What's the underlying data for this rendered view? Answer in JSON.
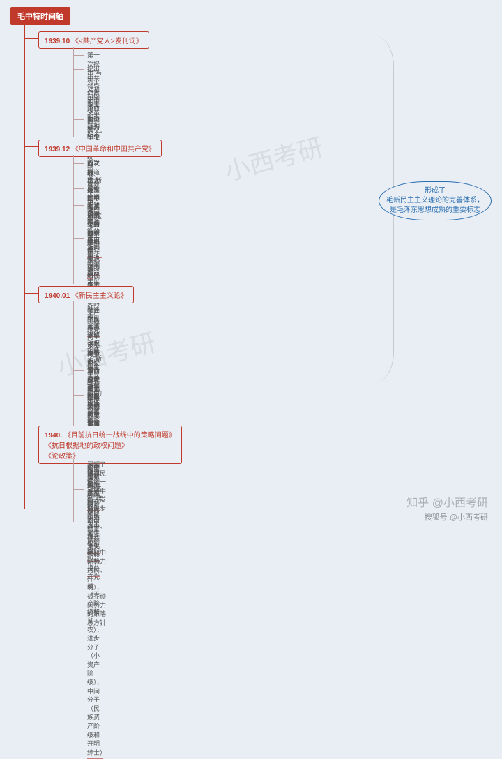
{
  "root_title": "毛中特时间轴",
  "callout": {
    "line1": "形成了",
    "line2": "毛新民主主义理论的完善体系，",
    "line3": "是毛泽东思想成熟的重要标志"
  },
  "watermarks": {
    "wm1": "小西考研",
    "wm2": "小西考研",
    "wm3": "知乎 @小西考研",
    "wm4": "搜狐号 @小西考研"
  },
  "sections": [
    {
      "date": "1939.10",
      "title": "《<共产党人>发刊词》",
      "items": [
        "第一次提出“马列主义和中国革命的实践相结合”",
        "提出中共领导新民主主义革命的“三大法宝”：\n统一战线、武装斗争、党的建设",
        "伟大的工程：建设成为一个全国范围内的、广大群众性的、思想上政治上\n组织上完全巩固的、马克思主义的无产阶级政党",
        "中国革命和中国共产党的发展道路，是在同中国资产阶级的复杂关系中\n走过来的"
      ]
    },
    {
      "date": "1939.12",
      "title": "《中国革命和中国共产党》",
      "items": [
        "首次提出“新民主注意的革命”这全新的科学概念",
        "分析了中国的社会性质问题",
        "系统地阐明了中国革命的对象、任务、动力和领导等问题",
        "阐述了中国革命的历史进程必须氛围新民主主义革命和社会主义革命两步，\n民主主义革命是社会主义革命的必要准备，社会主义革命是民主革命的\n必然趋势",
        "进一步揭示了中国革命走以农村包围城市、武装夺取政权道路的必要性\n及建设农村根据地的重要性"
      ]
    },
    {
      "date": "1940.01",
      "title": "《新民主主义论》",
      "items": [
        "论述新民主主义革命基本特点：革命是世界无产阶级社会主义革命的一部分；\n革命的领导者是无产阶级；革命的前途是社会主义",
        "论证了中国革命必须分两步走：新民主主义革命和社会主义革命",
        "论述了“新民主主义共和国”的国体和政体，并提出了新民主主义的\n政治纲领",
        "第一次完整地提出了新民主主义的经济纲领，制定了中国新民主主义的\n政治、经济、文化纲领",
        "新民主主义革命必须以共产主义思想为知道——这是新、旧民主革命\n在文化上的区别标志"
      ]
    },
    {
      "date": "1940.",
      "title": "《目前抗日统一战线中的策略问题》\n《抗日根据地的政权问题》\n《论政策》",
      "items": [
        "阐明了抗日民族统一战线中——发展进步势力（小、无、农），\n争取中间势力（民、开明），孤立顽固势力的策略总方针",
        "“三三制”政权是新民主主义性质的政权，指共产党员（无产阶级和\n贫农），进步分子（小资产阶级），中间分子（民族资产阶级和开明绅士）"
      ]
    }
  ],
  "layout": {
    "section_tops": [
      45,
      200,
      410,
      610
    ],
    "sub_trunk_heights": [
      130,
      185,
      180,
      90
    ],
    "item_offsets": [
      [
        28,
        48,
        82,
        120
      ],
      [
        28,
        46,
        64,
        88,
        135
      ],
      [
        28,
        65,
        85,
        115,
        150
      ],
      [
        50,
        85
      ]
    ],
    "topic_multiline": [
      false,
      false,
      false,
      true
    ]
  }
}
